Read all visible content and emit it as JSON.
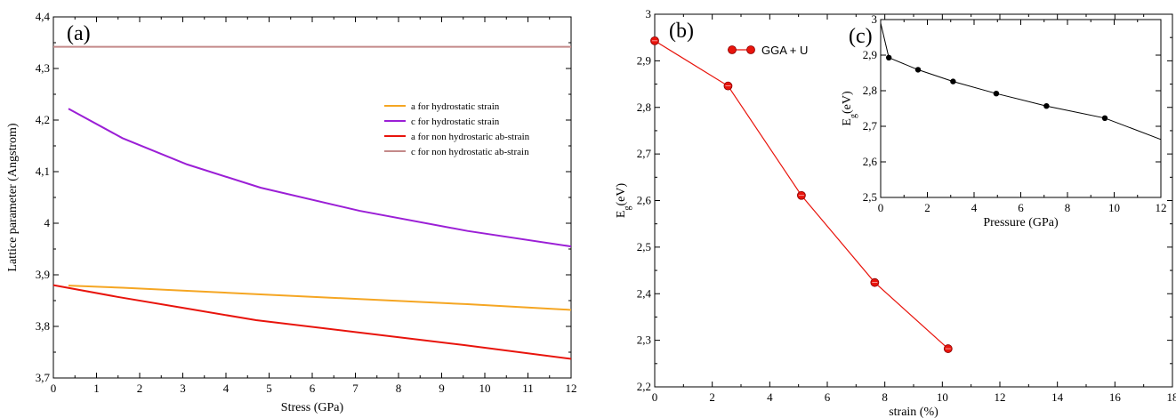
{
  "chart_data": [
    {
      "panel": "(a)",
      "type": "line",
      "xlabel": "Stress (GPa)",
      "ylabel": "Lattice parameter (Angstrom)",
      "xlim": [
        0,
        12
      ],
      "ylim": [
        3.7,
        4.4
      ],
      "xticks": [
        "0",
        "1",
        "2",
        "3",
        "4",
        "5",
        "6",
        "7",
        "8",
        "9",
        "10",
        "11",
        "12"
      ],
      "yticks": [
        "3,7",
        "3,8",
        "3,9",
        "4",
        "4,1",
        "4,2",
        "4,3",
        "4,4"
      ],
      "xtick_values": [
        0,
        1,
        2,
        3,
        4,
        5,
        6,
        7,
        8,
        9,
        10,
        11,
        12
      ],
      "ytick_values": [
        3.7,
        3.8,
        3.9,
        4.0,
        4.1,
        4.2,
        4.3,
        4.4
      ],
      "legend_position": "right-middle",
      "series": [
        {
          "name": "a for hydrostatic strain",
          "color": "#f5a623",
          "x": [
            0.35,
            1.6,
            3.1,
            4.8,
            7.1,
            9.6,
            12.0
          ],
          "y": [
            3.879,
            3.875,
            3.869,
            3.862,
            3.853,
            3.843,
            3.832
          ]
        },
        {
          "name": "c for hydrostatic strain",
          "color": "#9b1fd6",
          "x": [
            0.35,
            1.6,
            3.1,
            4.8,
            7.1,
            9.6,
            12.0
          ],
          "y": [
            4.222,
            4.165,
            4.114,
            4.069,
            4.024,
            3.985,
            3.955
          ]
        },
        {
          "name": "a for non hydrostaric ab-strain",
          "color": "#e8140c",
          "x": [
            0.0,
            1.5,
            3.0,
            4.7,
            7.0,
            9.5,
            12.0
          ],
          "y": [
            3.88,
            3.857,
            3.836,
            3.812,
            3.789,
            3.764,
            3.737
          ]
        },
        {
          "name": "c for non hydrostatic ab-strain",
          "color": "#c48a8a",
          "x": [
            0.0,
            12.0
          ],
          "y": [
            4.342,
            4.342
          ]
        }
      ]
    },
    {
      "panel": "(b)",
      "type": "line",
      "xlabel": "strain (%)",
      "ylabel": "E",
      "ylabel_sub": "g",
      "ylabel_unit": "(eV)",
      "xlim": [
        0,
        18
      ],
      "ylim": [
        2.2,
        3.0
      ],
      "xticks": [
        "0",
        "2",
        "4",
        "6",
        "8",
        "10",
        "12",
        "14",
        "16",
        "18"
      ],
      "yticks": [
        "2,2",
        "2,3",
        "2,4",
        "2,5",
        "2,6",
        "2,7",
        "2,8",
        "2,9",
        "3"
      ],
      "xtick_values": [
        0,
        2,
        4,
        6,
        8,
        10,
        12,
        14,
        16,
        18
      ],
      "ytick_values": [
        2.2,
        2.3,
        2.4,
        2.5,
        2.6,
        2.7,
        2.8,
        2.9,
        3.0
      ],
      "legend_position": "top-left",
      "series": [
        {
          "name": "GGA + U",
          "color": "#e8140c",
          "x": [
            0.0,
            2.55,
            5.1,
            7.65,
            10.2
          ],
          "y": [
            2.943,
            2.846,
            2.611,
            2.424,
            2.282
          ]
        }
      ]
    },
    {
      "panel": "(c)",
      "type": "line",
      "xlabel": "Pressure (GPa)",
      "ylabel": "E",
      "ylabel_sub": "g",
      "ylabel_unit": "(eV)",
      "xlim": [
        0,
        12
      ],
      "ylim": [
        2.5,
        3.0
      ],
      "xticks": [
        "0",
        "2",
        "4",
        "6",
        "8",
        "10",
        "12"
      ],
      "yticks": [
        "2,5",
        "2,6",
        "2,7",
        "2,8",
        "2,9",
        "3"
      ],
      "xtick_values": [
        0,
        2,
        4,
        6,
        8,
        10,
        12
      ],
      "ytick_values": [
        2.5,
        2.6,
        2.7,
        2.8,
        2.9,
        3.0
      ],
      "series": [
        {
          "color": "#000000",
          "x": [
            0.0,
            0.35,
            1.6,
            3.1,
            4.95,
            7.1,
            9.6,
            12.0
          ],
          "y": [
            2.99,
            2.893,
            2.859,
            2.826,
            2.792,
            2.757,
            2.723,
            2.663
          ],
          "markers": [
            0.35,
            1.6,
            3.1,
            4.95,
            7.1,
            9.6
          ]
        }
      ]
    }
  ]
}
